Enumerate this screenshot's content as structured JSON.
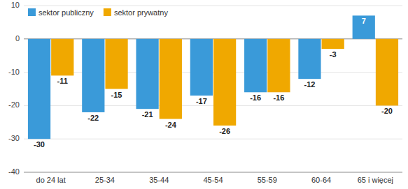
{
  "chart_data": {
    "type": "bar",
    "categories": [
      "do 24 lat",
      "25-34",
      "35-44",
      "45-54",
      "55-59",
      "60-64",
      "65 i więcej"
    ],
    "series": [
      {
        "name": "sektor publiczny",
        "color": "#3a9ad9",
        "values": [
          -30,
          -22,
          -21,
          -17,
          -16,
          -12,
          7
        ]
      },
      {
        "name": "sektor prywatny",
        "color": "#f0a800",
        "values": [
          -11,
          -15,
          -24,
          -26,
          -16,
          -3,
          -20
        ]
      }
    ],
    "ylim": [
      -40,
      10
    ],
    "yticks": [
      -40,
      -30,
      -20,
      -10,
      0,
      10
    ],
    "grid": true,
    "legend": "upper left",
    "data_labels": true
  }
}
